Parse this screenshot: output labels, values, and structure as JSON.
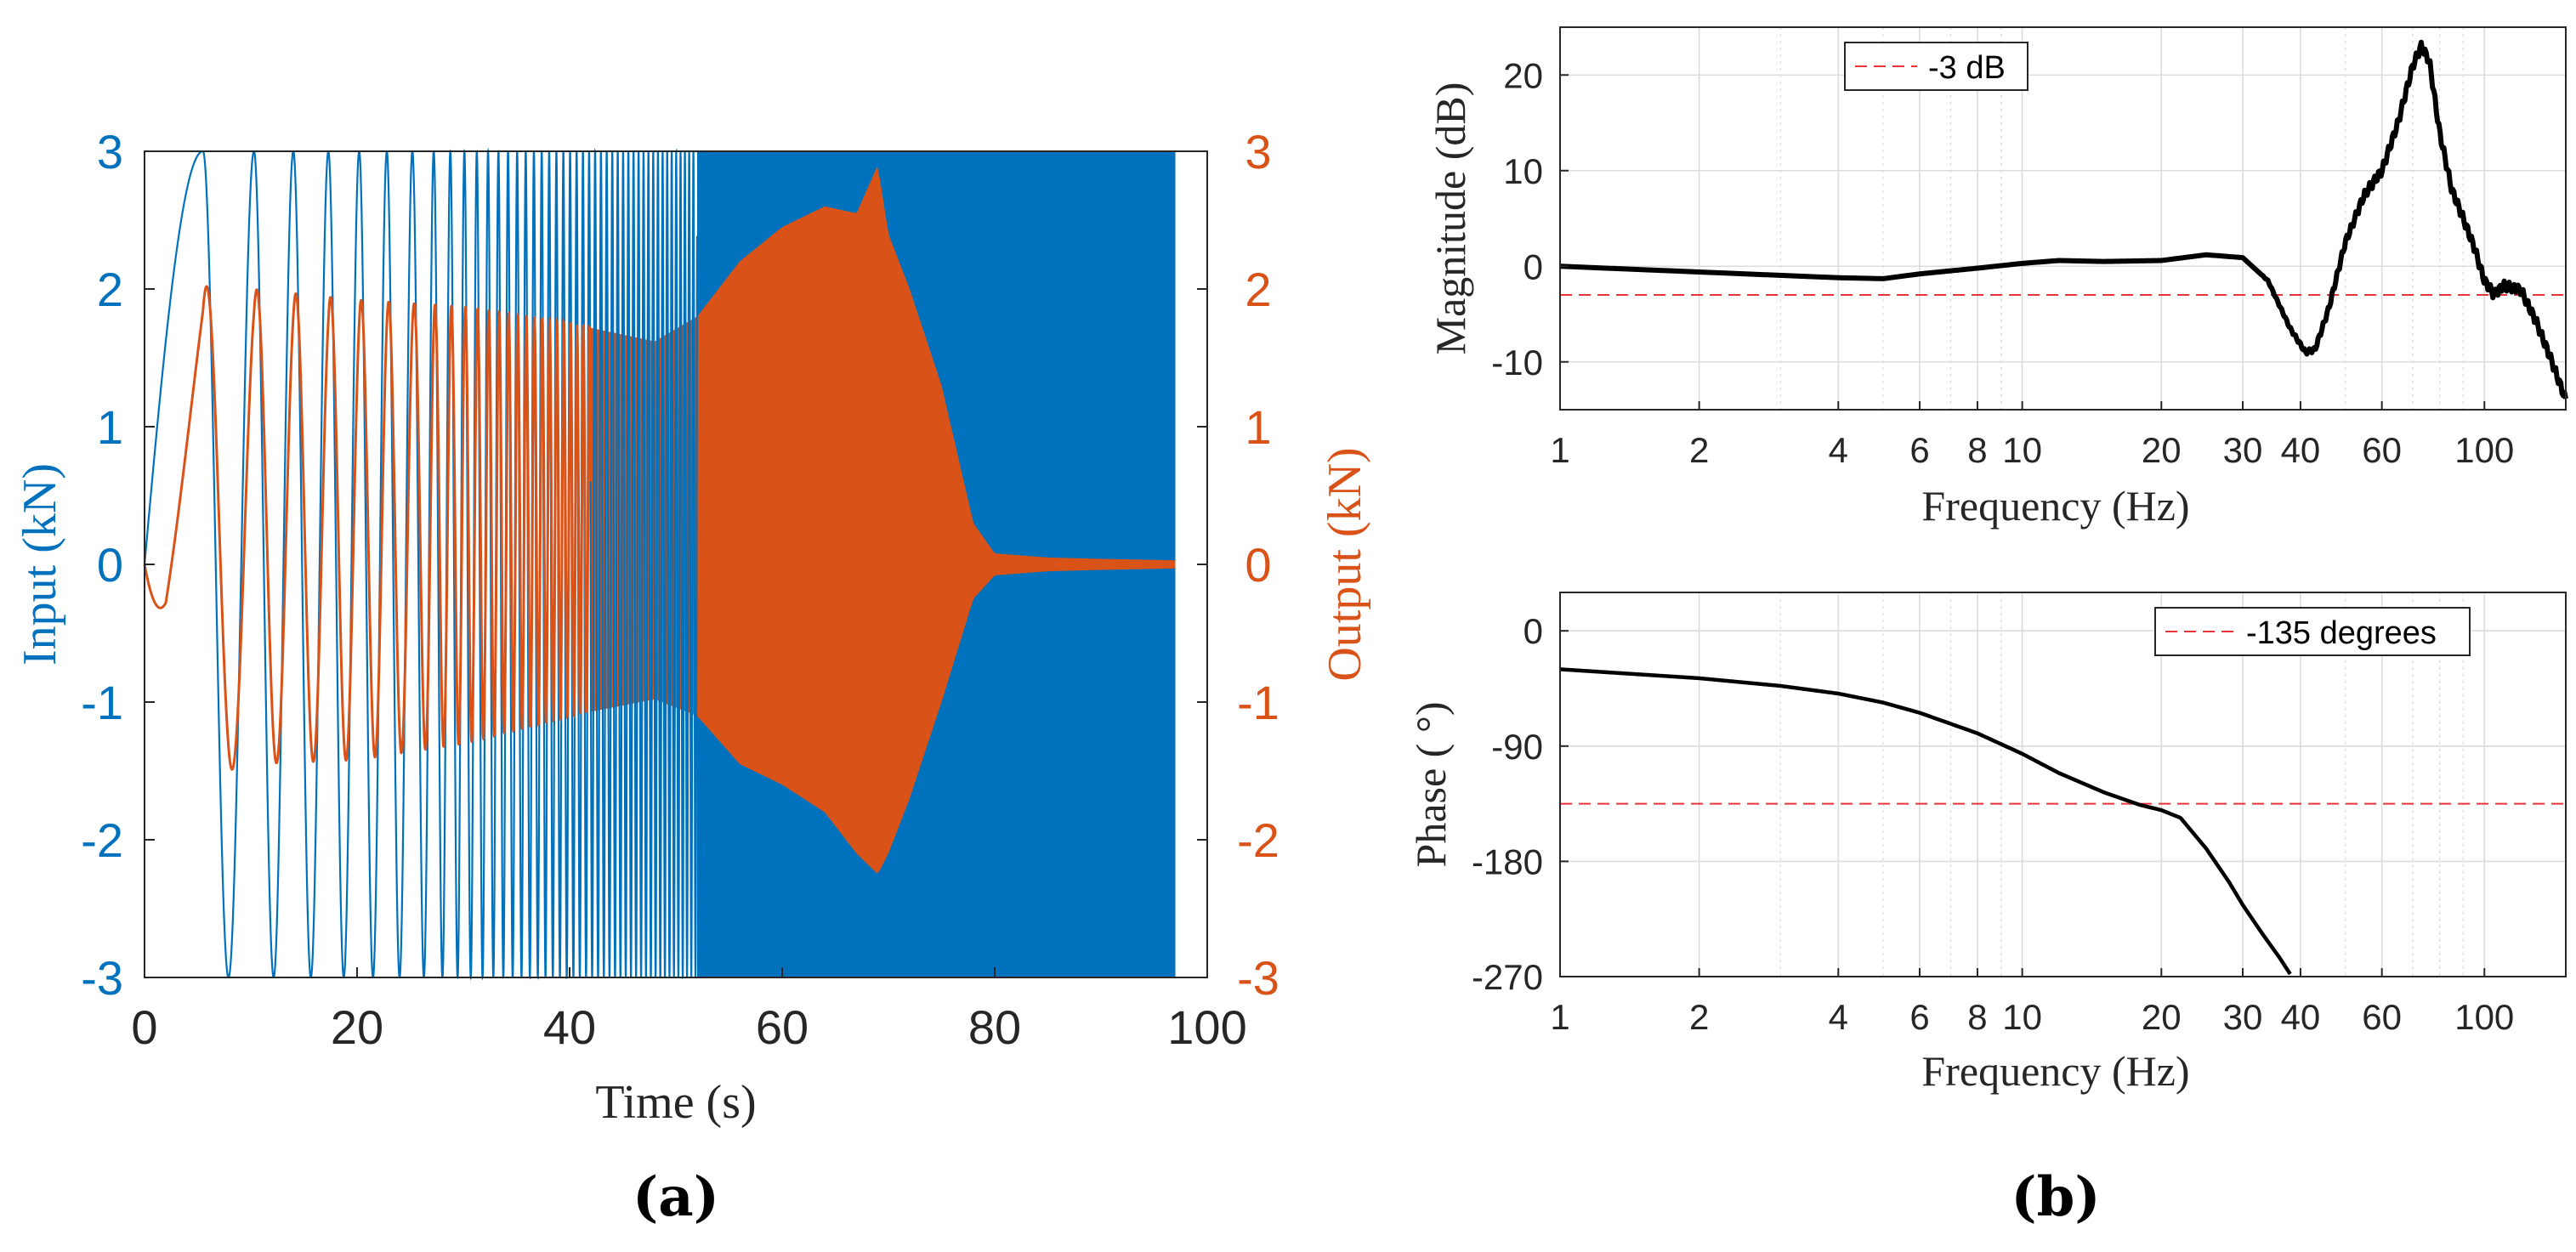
{
  "panel_labels": [
    "(a)",
    "(b)"
  ],
  "colors": {
    "input": "#0072BD",
    "output": "#D95319",
    "trace": "#000000",
    "reference": "#E8333A",
    "grid": "#DCDCDC"
  },
  "chart_data": [
    {
      "id": "time_history",
      "type": "line",
      "xlabel": "Time (s)",
      "ylabel_left": "Input (kN)",
      "ylabel_right": "Output (kN)",
      "xlim": [
        0,
        100
      ],
      "ylim_left": [
        -3,
        3
      ],
      "ylim_right": [
        -3,
        3
      ],
      "xticks": [
        "0",
        "20",
        "40",
        "60",
        "80",
        "100"
      ],
      "yticks_left": [
        "3",
        "2",
        "1",
        "0",
        "-1",
        "-2",
        "-3"
      ],
      "yticks_right": [
        "3",
        "2",
        "1",
        "0",
        "-1",
        "-2",
        "-3"
      ],
      "grid": false,
      "series": [
        {
          "axis": "left",
          "style": "sine sweep, amplitude 3 kN, increasing frequency, visually solid after ~52 s, ends at ~97 s",
          "amplitude": 3,
          "t_end": 97,
          "peaks_t": [
            5.5,
            10.3,
            14.0,
            17.3,
            20.2,
            22.8,
            25.2
          ]
        },
        {
          "axis": "right",
          "style": "response envelope",
          "envelope": {
            "t": [
              0,
              2,
              5.5,
              10,
              20,
              30,
              40,
              48,
              52,
              56,
              60,
              64,
              67,
              69,
              70,
              72,
              75,
              78,
              80,
              85,
              90,
              97
            ],
            "upper": [
              0,
              0.6,
              2.02,
              2.0,
              1.92,
              1.87,
              1.75,
              1.62,
              1.8,
              2.2,
              2.45,
              2.6,
              2.55,
              2.9,
              2.4,
              2.0,
              1.3,
              0.3,
              0.08,
              0.05,
              0.04,
              0.03
            ],
            "lower": [
              0,
              -1.4,
              -1.55,
              -1.45,
              -1.42,
              -1.3,
              -1.1,
              -0.98,
              -1.1,
              -1.45,
              -1.6,
              -1.8,
              -2.1,
              -2.25,
              -2.1,
              -1.7,
              -1.0,
              -0.25,
              -0.08,
              -0.05,
              -0.04,
              -0.03
            ]
          }
        }
      ]
    },
    {
      "id": "magnitude",
      "type": "line",
      "xlabel": "Frequency (Hz)",
      "ylabel": "Magnitude (dB)",
      "xscale": "log",
      "xlim": [
        1,
        150
      ],
      "ylim": [
        -15,
        25
      ],
      "xticks": [
        "1",
        "2",
        "4",
        "6",
        "8",
        "10",
        "20",
        "30",
        "40",
        "60",
        "100"
      ],
      "xtick_values": [
        1,
        2,
        4,
        6,
        8,
        10,
        20,
        30,
        40,
        60,
        100
      ],
      "yticks": [
        "20",
        "10",
        "0",
        "-10"
      ],
      "ytick_values": [
        20,
        10,
        0,
        -10
      ],
      "grid": true,
      "legend": {
        "entries": [
          "-3 dB"
        ],
        "position": "top-left"
      },
      "reference_line": {
        "value": -3,
        "name": "-3 dB"
      },
      "series": [
        {
          "x": [
            1,
            2,
            4,
            5,
            6,
            8,
            10,
            12,
            15,
            20,
            25,
            30,
            34,
            38,
            41,
            43,
            46,
            50,
            55,
            60,
            65,
            70,
            73,
            76,
            80,
            85,
            90,
            95,
            100,
            105,
            110,
            120,
            130,
            140,
            150
          ],
          "y": [
            0,
            -0.6,
            -1.2,
            -1.3,
            -0.8,
            -0.2,
            0.3,
            0.6,
            0.5,
            0.6,
            1.2,
            0.9,
            -1.5,
            -6.5,
            -9.0,
            -8.7,
            -4.5,
            2.5,
            7.5,
            10.0,
            15.0,
            21.0,
            23.0,
            21.5,
            14.0,
            8.0,
            5.0,
            2.0,
            -1.5,
            -3.0,
            -2.0,
            -2.5,
            -6.0,
            -10.0,
            -14.0
          ]
        }
      ]
    },
    {
      "id": "phase",
      "type": "line",
      "xlabel": "Frequency (Hz)",
      "ylabel": "Phase ( °)",
      "xscale": "log",
      "xlim": [
        1,
        150
      ],
      "ylim": [
        -270,
        30
      ],
      "xticks": [
        "1",
        "2",
        "4",
        "6",
        "8",
        "10",
        "20",
        "30",
        "40",
        "60",
        "100"
      ],
      "xtick_values": [
        1,
        2,
        4,
        6,
        8,
        10,
        20,
        30,
        40,
        60,
        100
      ],
      "yticks": [
        "0",
        "-90",
        "-180",
        "-270"
      ],
      "ytick_values": [
        0,
        -90,
        -180,
        -270
      ],
      "grid": true,
      "legend": {
        "entries": [
          "-135 degrees"
        ],
        "position": "top-right"
      },
      "reference_line": {
        "value": -135,
        "name": "-135 degrees"
      },
      "series": [
        {
          "x": [
            1,
            2,
            3,
            4,
            5,
            6,
            8,
            10,
            12,
            15,
            18,
            20,
            22,
            25,
            28,
            30,
            33,
            36,
            38
          ],
          "y": [
            -30,
            -37,
            -43,
            -49,
            -56,
            -64,
            -80,
            -96,
            -111,
            -126,
            -136,
            -140,
            -146,
            -170,
            -196,
            -214,
            -236,
            -255,
            -268
          ]
        }
      ]
    }
  ]
}
